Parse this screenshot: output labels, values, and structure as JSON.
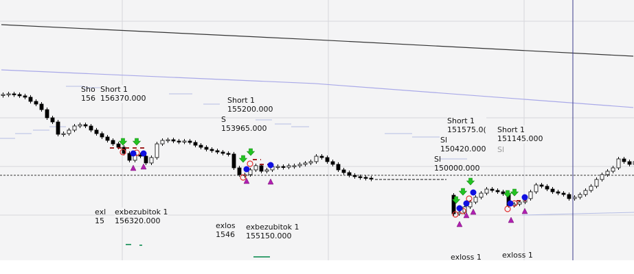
{
  "chart_data": {
    "type": "candlestick",
    "title": "",
    "xlabel": "",
    "ylabel": "",
    "ylim": [
      144790,
      171620
    ],
    "grid": true,
    "colors": {
      "background": "#f4f4f5",
      "grid": "#d6d6dc",
      "up": "#ffffff",
      "down": "#000000",
      "ma_slow": "#333333",
      "ma_fast": "#a8a8e8",
      "stop_steps": "#b4bce4",
      "cursor": "#3a3a8a",
      "entry_arrow": "#22c322",
      "exit_circle": "#e03030",
      "fill_dot": "#1010e0",
      "triangle": "#b020b0",
      "exit_dash": "#3aa070",
      "order_dash": "#a02020"
    },
    "candles_segment_1": {
      "start_index": 0,
      "first_open": 161850,
      "closes": [
        161880,
        161950,
        161880,
        161740,
        161600,
        161170,
        160890,
        160320,
        159480,
        159050,
        157780,
        157850,
        158210,
        158630,
        158770,
        158630,
        158210,
        157850,
        157500,
        157150,
        156790,
        156440,
        155810,
        155100,
        155660,
        155520,
        154820,
        155380,
        156790,
        157150,
        157220,
        157080,
        157010,
        157080,
        156940,
        156650,
        156440,
        156230,
        156090,
        155950,
        155810,
        155740,
        154320,
        153620,
        153620,
        154110,
        154540,
        153970,
        154110,
        154460,
        154460,
        154390,
        154540,
        154540,
        154680,
        154820,
        154960,
        155520,
        155380,
        154960,
        154680,
        154110,
        153830,
        153550,
        153410,
        153340,
        153260,
        153190
      ]
    },
    "candles_segment_2": {
      "start_index": 82,
      "first_open": 151500,
      "closes": [
        149590,
        149730,
        150300,
        150790,
        151290,
        151710,
        152130,
        151990,
        151850,
        151640,
        150440,
        150580,
        150790,
        151150,
        151850,
        152560,
        152420,
        152130,
        151850,
        151710,
        151570,
        151150,
        151290,
        151570,
        151990,
        152420,
        153120,
        153620,
        153970,
        154320,
        155240,
        154960,
        154680,
        154960
      ]
    },
    "overlays": {
      "ma_slow": [
        [
          0,
          169080
        ],
        [
          57,
          167530
        ],
        [
          115,
          165830
        ]
      ],
      "ma_fast": [
        [
          0,
          164420
        ],
        [
          57,
          163010
        ],
        [
          115,
          160540
        ]
      ],
      "reference_level": 153550,
      "flat_level": {
        "from_index": 68,
        "to_index": 81,
        "price": 153120
      },
      "cursor_index": 104
    },
    "annotations": [
      {
        "text": [
          "Sho",
          "156"
        ]
      },
      {
        "text": [
          "Short 1",
          "156370.000"
        ]
      },
      {
        "text": [
          "S",
          "153965.000"
        ]
      },
      {
        "text": [
          "Short 1",
          "155200.000"
        ]
      },
      {
        "text": [
          "Sl",
          "150000.000"
        ]
      },
      {
        "text": [
          "Sl",
          "150420.000"
        ]
      },
      {
        "text": [
          "Short 1",
          "151575.0("
        ]
      },
      {
        "text": [
          "Sl",
          ""
        ]
      },
      {
        "text": [
          "Short 1",
          "151145.000"
        ]
      },
      {
        "text": [
          "exl",
          "15"
        ]
      },
      {
        "text": [
          "exbezubitok 1",
          "156320.000"
        ]
      },
      {
        "text": [
          "exlos",
          "1546"
        ]
      },
      {
        "text": [
          "exbezubitok 1",
          "155150.000"
        ]
      },
      {
        "text": [
          "exloss 1",
          ""
        ]
      },
      {
        "text": [
          "exloss 1",
          ""
        ]
      }
    ]
  }
}
